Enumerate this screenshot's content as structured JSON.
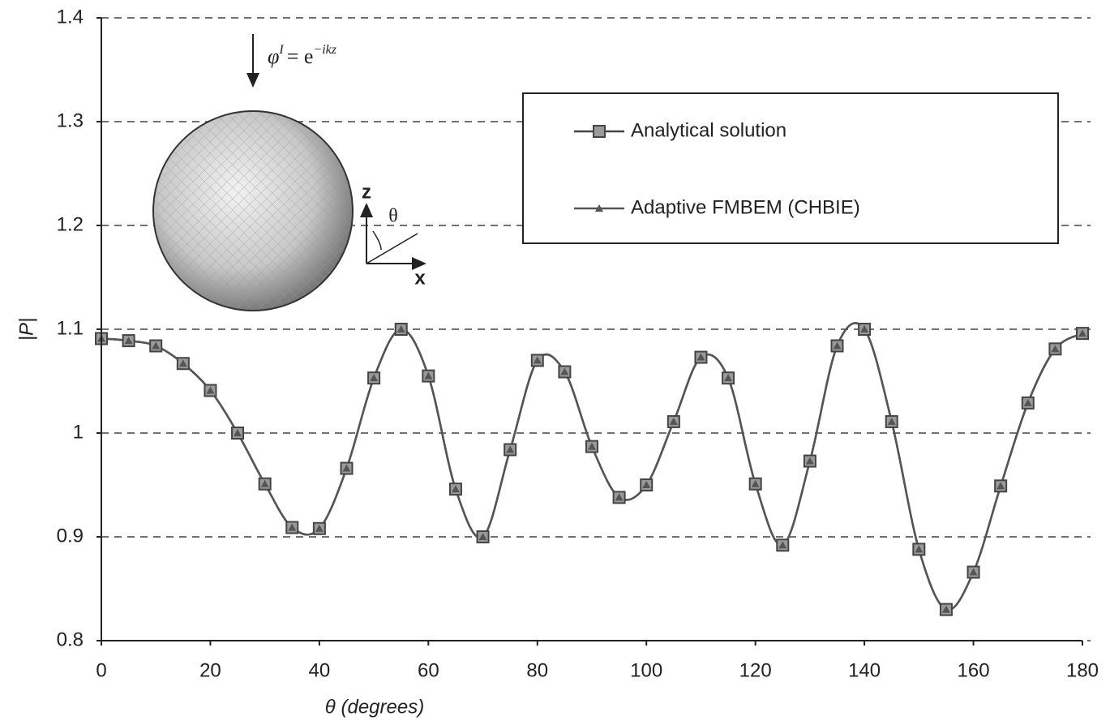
{
  "chart_data": {
    "type": "line",
    "x_label": "θ (degrees)",
    "y_label": "|P|",
    "x": [
      0,
      5,
      10,
      15,
      20,
      25,
      30,
      35,
      40,
      45,
      50,
      55,
      60,
      65,
      70,
      75,
      80,
      85,
      90,
      95,
      100,
      105,
      110,
      115,
      120,
      125,
      130,
      135,
      140,
      145,
      150,
      155,
      160,
      165,
      170,
      175,
      180
    ],
    "series": [
      {
        "name": "Analytical solution",
        "color": "#444444",
        "marker": "square",
        "values": [
          1.091,
          1.089,
          1.084,
          1.067,
          1.041,
          1.0,
          0.951,
          0.909,
          0.908,
          0.966,
          1.053,
          1.1,
          1.055,
          0.946,
          0.9,
          0.984,
          1.07,
          1.059,
          0.987,
          0.938,
          0.95,
          1.011,
          1.073,
          1.053,
          0.951,
          0.892,
          0.973,
          1.084,
          1.1,
          1.011,
          0.888,
          0.83,
          0.866,
          0.949,
          1.029,
          1.081,
          1.096
        ]
      },
      {
        "name": "Adaptive FMBEM (CHBIE)",
        "color": "#555555",
        "marker": "triangle",
        "values": [
          1.091,
          1.089,
          1.084,
          1.067,
          1.041,
          1.0,
          0.951,
          0.909,
          0.908,
          0.966,
          1.053,
          1.1,
          1.055,
          0.946,
          0.9,
          0.984,
          1.07,
          1.059,
          0.987,
          0.938,
          0.95,
          1.011,
          1.073,
          1.053,
          0.951,
          0.892,
          0.973,
          1.084,
          1.1,
          1.011,
          0.888,
          0.83,
          0.866,
          0.949,
          1.029,
          1.081,
          1.096
        ]
      }
    ],
    "xlim": [
      0,
      180
    ],
    "xticks": [
      0,
      20,
      40,
      60,
      80,
      100,
      120,
      140,
      160,
      180
    ],
    "ylim": [
      0.8,
      1.4
    ],
    "yticks": [
      0.8,
      0.9,
      1,
      1.1,
      1.2,
      1.3,
      1.4
    ],
    "grid": true,
    "legend": "upper right",
    "inset": {
      "wave_symbol": "φ",
      "wave_superscript": "I",
      "wave_equals": "= e",
      "wave_exponent": "−ikz",
      "z_label": "z",
      "x_label": "x",
      "angle_label": "θ"
    }
  }
}
